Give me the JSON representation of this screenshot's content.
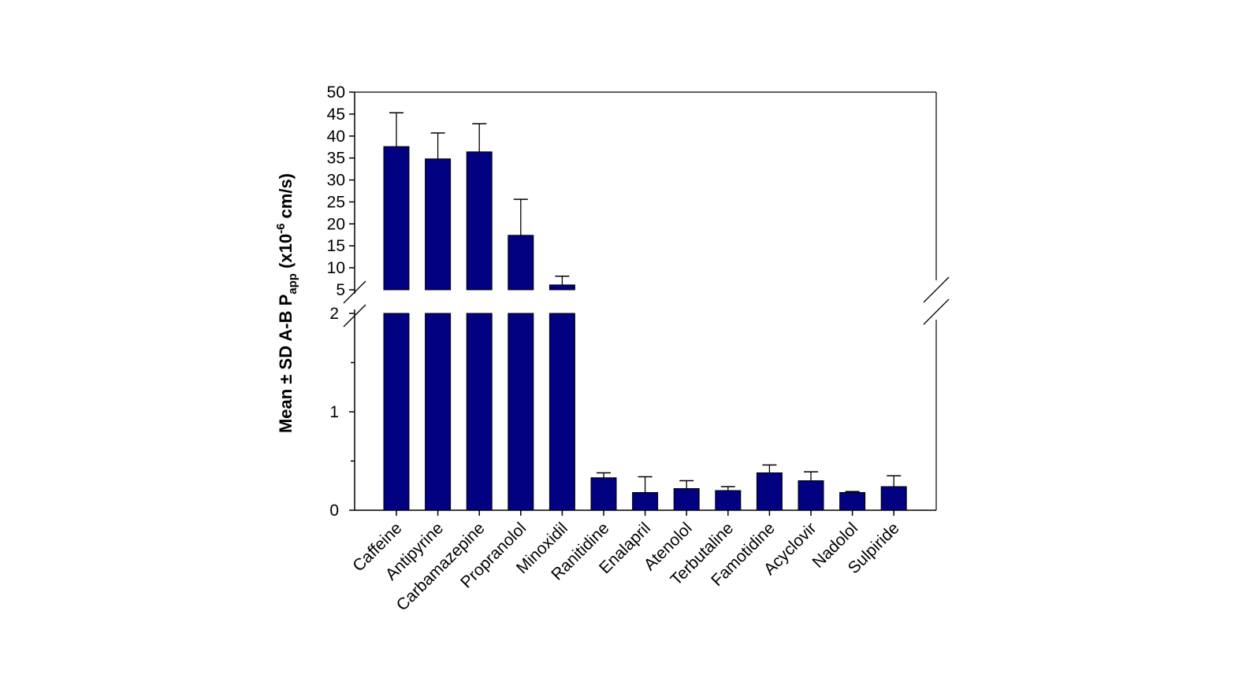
{
  "chart_data": {
    "type": "bar",
    "title": "",
    "xlabel": "",
    "ylabel": "Mean ± SD A-B P",
    "ylabel_subscript": "app",
    "ylabel_unit_prefix": " (x10",
    "ylabel_unit_exp": "-6",
    "ylabel_unit_suffix": " cm/s)",
    "y_axis_break": [
      2,
      5
    ],
    "ylim_lower": [
      0,
      2
    ],
    "ylim_upper": [
      5,
      50
    ],
    "yticks_lower": [
      "0",
      "1",
      "2"
    ],
    "yticks_upper": [
      "5",
      "10",
      "15",
      "20",
      "25",
      "30",
      "35",
      "40",
      "45",
      "50"
    ],
    "grid": false,
    "bar_color": "#000080",
    "categories": [
      "Caffeine",
      "Antipyrine",
      "Carbamazepine",
      "Propranolol",
      "Minoxidil",
      "Ranitidine",
      "Enalapril",
      "Atenolol",
      "Terbutaline",
      "Famotidine",
      "Acyclovir",
      "Nadolol",
      "Sulpiride"
    ],
    "values": [
      37.6,
      34.8,
      36.4,
      17.4,
      6.1,
      0.33,
      0.18,
      0.22,
      0.2,
      0.38,
      0.3,
      0.18,
      0.24
    ],
    "sd": [
      7.7,
      5.9,
      6.4,
      8.2,
      2.0,
      0.05,
      0.16,
      0.08,
      0.04,
      0.08,
      0.09,
      0.01,
      0.11
    ]
  }
}
